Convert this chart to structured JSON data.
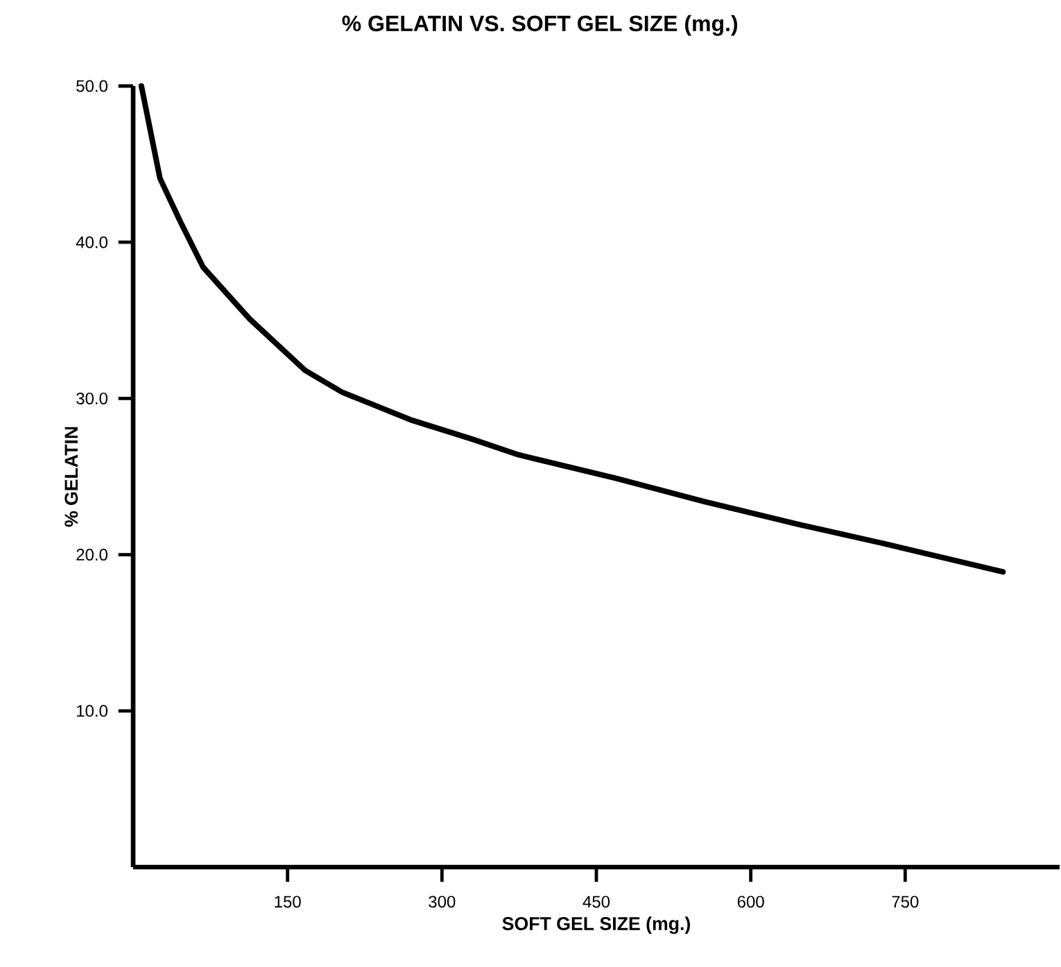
{
  "chart_data": {
    "type": "line",
    "title": "% GELATIN VS. SOFT GEL SIZE (mg.)",
    "xlabel": "SOFT GEL SIZE (mg.)",
    "ylabel": "% GELATIN",
    "xlim": [
      0,
      900
    ],
    "ylim": [
      0,
      50
    ],
    "xticks": [
      150,
      300,
      450,
      600,
      750
    ],
    "yticks": [
      {
        "value": 10,
        "label": "10.0"
      },
      {
        "value": 20,
        "label": "20.0"
      },
      {
        "value": 30,
        "label": "30.0"
      },
      {
        "value": 40,
        "label": "40.0"
      },
      {
        "value": 50,
        "label": "50.0"
      }
    ],
    "grid": false,
    "marker": "none",
    "line_style": "solid",
    "series": [
      {
        "color": "#000000",
        "x": [
          8,
          26,
          46,
          68,
          113,
          167,
          203,
          271,
          329,
          374,
          468,
          555,
          649,
          730,
          845
        ],
        "values": [
          50,
          44.1,
          41.3,
          38.4,
          35.1,
          31.8,
          30.4,
          28.6,
          27.4,
          26.4,
          24.9,
          23.4,
          21.9,
          20.7,
          18.9
        ]
      }
    ]
  }
}
